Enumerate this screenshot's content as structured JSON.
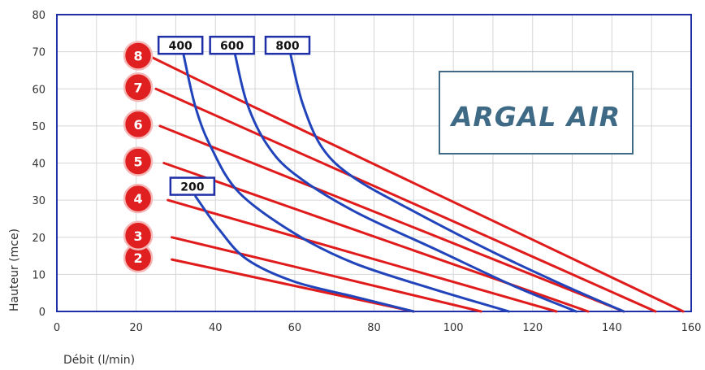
{
  "chart_data": {
    "type": "line",
    "xlabel": "Débit (l/min)",
    "ylabel": "Hauteur (mce)",
    "xlim": [
      0,
      160
    ],
    "ylim": [
      0,
      80
    ],
    "x_ticks": [
      "0",
      "20",
      "40",
      "60",
      "80",
      "100",
      "120",
      "140",
      "160"
    ],
    "y_ticks": [
      "0",
      "10",
      "20",
      "30",
      "40",
      "50",
      "60",
      "70",
      "80"
    ],
    "grid": true,
    "logo_text": "ARGAL AIR",
    "pressure_series": [
      {
        "label": "2",
        "color": "#e01b1b",
        "points": [
          [
            29,
            14
          ],
          [
            90,
            0
          ]
        ]
      },
      {
        "label": "3",
        "color": "#e01b1b",
        "points": [
          [
            29,
            20
          ],
          [
            107,
            0
          ]
        ]
      },
      {
        "label": "4",
        "color": "#e01b1b",
        "points": [
          [
            28,
            30
          ],
          [
            126,
            0
          ]
        ]
      },
      {
        "label": "5",
        "color": "#e01b1b",
        "points": [
          [
            27,
            40
          ],
          [
            134,
            0
          ]
        ]
      },
      {
        "label": "6",
        "color": "#e01b1b",
        "points": [
          [
            26,
            50
          ],
          [
            143,
            0
          ]
        ]
      },
      {
        "label": "7",
        "color": "#e01b1b",
        "points": [
          [
            25,
            60
          ],
          [
            151,
            0
          ]
        ]
      },
      {
        "label": "8",
        "color": "#e01b1b",
        "points": [
          [
            24,
            68.5
          ],
          [
            46,
            57
          ],
          [
            158,
            0
          ]
        ]
      }
    ],
    "consumption_series": [
      {
        "label": "200",
        "color": "#2244bb",
        "points": [
          [
            35,
            31
          ],
          [
            41,
            22
          ],
          [
            48,
            14
          ],
          [
            60,
            8
          ],
          [
            75,
            4
          ],
          [
            90,
            0
          ]
        ]
      },
      {
        "label": "400",
        "color": "#2244bb",
        "points": [
          [
            32,
            69
          ],
          [
            35,
            55
          ],
          [
            39,
            44
          ],
          [
            46,
            32
          ],
          [
            60,
            21
          ],
          [
            75,
            13
          ],
          [
            95,
            6
          ],
          [
            114,
            0
          ]
        ]
      },
      {
        "label": "600",
        "color": "#2244bb",
        "points": [
          [
            45,
            69
          ],
          [
            48,
            56
          ],
          [
            53,
            45
          ],
          [
            60,
            37
          ],
          [
            75,
            27
          ],
          [
            95,
            17
          ],
          [
            115,
            7
          ],
          [
            131,
            0
          ]
        ]
      },
      {
        "label": "800",
        "color": "#2244bb",
        "points": [
          [
            59,
            69
          ],
          [
            62,
            56
          ],
          [
            67,
            44
          ],
          [
            75,
            36
          ],
          [
            90,
            27
          ],
          [
            110,
            16
          ],
          [
            128,
            7
          ],
          [
            143,
            0
          ]
        ]
      }
    ]
  }
}
